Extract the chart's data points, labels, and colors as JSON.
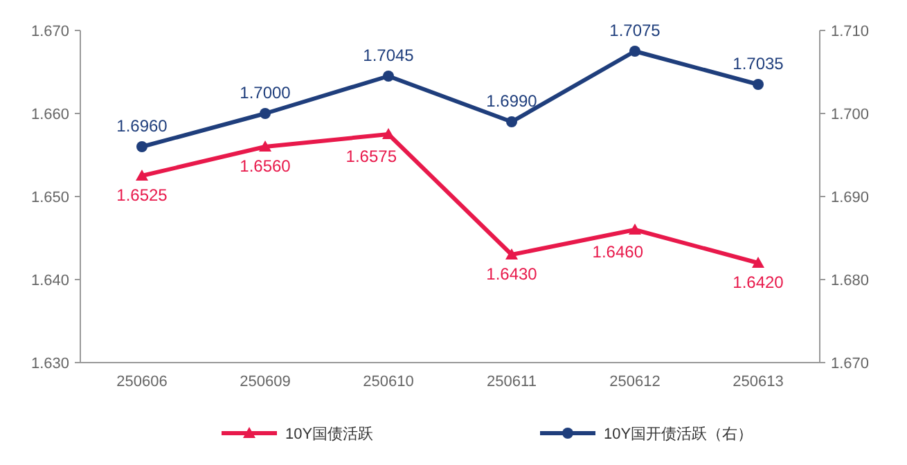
{
  "chart_data": {
    "type": "line",
    "categories": [
      "250606",
      "250609",
      "250610",
      "250611",
      "250612",
      "250613"
    ],
    "series": [
      {
        "name": "10Y国债活跃",
        "color": "#e8194b",
        "marker": "triangle",
        "values": [
          1.6525,
          1.656,
          1.6575,
          1.643,
          1.646,
          1.642
        ],
        "value_labels": [
          "1.6525",
          "1.6560",
          "1.6575",
          "1.6430",
          "1.6460",
          "1.6420"
        ]
      },
      {
        "name": "10Y国开债活跃（右）",
        "color": "#1f3e7c",
        "marker": "circle",
        "axis": "y2",
        "values": [
          1.696,
          1.7,
          1.7045,
          1.699,
          1.7075,
          1.7035
        ],
        "value_labels": [
          "1.6960",
          "1.7000",
          "1.7045",
          "1.6990",
          "1.7075",
          "1.7035"
        ]
      }
    ],
    "ylim": [
      1.63,
      1.67
    ],
    "yticks": [
      {
        "value": 1.63,
        "label": "1.630"
      },
      {
        "value": 1.64,
        "label": "1.640"
      },
      {
        "value": 1.65,
        "label": "1.650"
      },
      {
        "value": 1.66,
        "label": "1.660"
      },
      {
        "value": 1.67,
        "label": "1.670"
      }
    ],
    "y2lim": [
      1.67,
      1.71
    ],
    "y2ticks": [
      {
        "value": 1.67,
        "label": "1.670"
      },
      {
        "value": 1.68,
        "label": "1.680"
      },
      {
        "value": 1.69,
        "label": "1.690"
      },
      {
        "value": 1.7,
        "label": "1.700"
      },
      {
        "value": 1.71,
        "label": "1.710"
      }
    ],
    "grid": false,
    "legend": "bottom",
    "line_style": "solid"
  }
}
